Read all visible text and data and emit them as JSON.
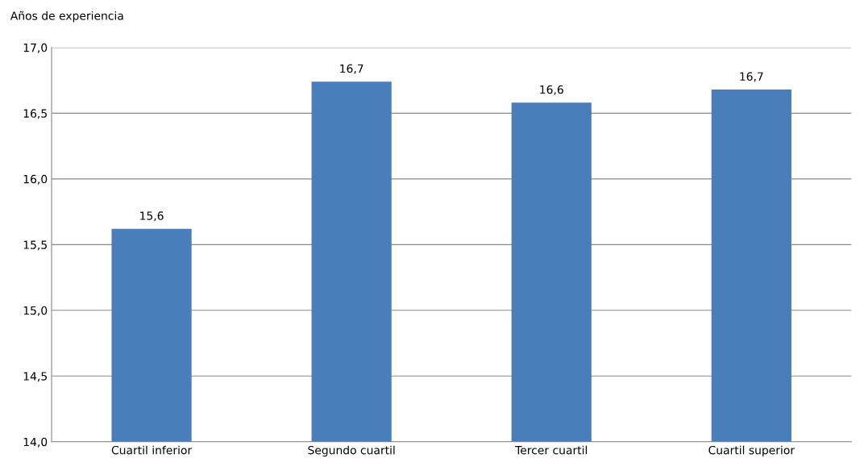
{
  "chart_data": {
    "type": "bar",
    "ylabel": "Años de experiencia",
    "categories": [
      "Cuartil inferior",
      "Segundo cuartil",
      "Tercer cuartil",
      "Cuartil superior"
    ],
    "values": [
      15.62,
      16.74,
      16.58,
      16.68
    ],
    "value_labels": [
      "15,6",
      "16,7",
      "16,6",
      "16,7"
    ],
    "color": "#4a7ebb",
    "ylim": [
      14.0,
      17.0
    ],
    "yticks": [
      {
        "value": 14.0,
        "label": "14,0"
      },
      {
        "value": 14.5,
        "label": "14,5"
      },
      {
        "value": 15.0,
        "label": "15,0"
      },
      {
        "value": 15.5,
        "label": "15,5"
      },
      {
        "value": 16.0,
        "label": "16,0"
      },
      {
        "value": 16.5,
        "label": "16,5"
      },
      {
        "value": 17.0,
        "label": "17,0"
      }
    ],
    "grid": "y"
  }
}
